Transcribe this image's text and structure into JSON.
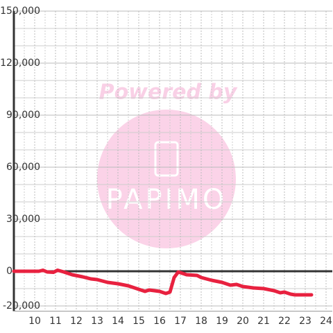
{
  "chart_data": {
    "type": "line",
    "x": [
      9,
      10.2,
      10.4,
      10.6,
      10.9,
      11.1,
      11.4,
      11.8,
      12.3,
      12.7,
      13,
      13.5,
      14,
      14.5,
      15,
      15.3,
      15.5,
      16,
      16.3,
      16.5,
      16.7,
      16.9,
      17,
      17.3,
      17.8,
      18,
      18.5,
      19,
      19.4,
      19.7,
      20,
      20.5,
      21,
      21.5,
      21.8,
      22,
      22.3,
      22.5,
      23.3
    ],
    "series": [
      {
        "color": "#e8213f",
        "values": [
          0,
          0,
          600,
          -400,
          -600,
          600,
          -400,
          -2000,
          -3200,
          -4400,
          -4800,
          -6400,
          -7200,
          -8400,
          -10400,
          -11600,
          -10800,
          -11600,
          -12800,
          -12000,
          -3600,
          -400,
          -800,
          -2000,
          -2400,
          -3600,
          -5200,
          -6400,
          -8000,
          -7600,
          -8800,
          -9600,
          -10000,
          -11200,
          -12400,
          -12000,
          -13200,
          -13600,
          -13600
        ]
      }
    ],
    "xlim": [
      9,
      24.3
    ],
    "ylim": [
      -23000,
      150000
    ],
    "xticks": [
      10,
      11,
      12,
      13,
      14,
      15,
      16,
      17,
      18,
      19,
      20,
      21,
      22,
      23,
      24
    ],
    "xminor": [
      9.5,
      10.5,
      11.5,
      12.5,
      13.5,
      14.5,
      15.5,
      16.5,
      17.5,
      18.5,
      19.5,
      20.5,
      21.5,
      22.5,
      23.5
    ],
    "yticks": [
      {
        "value": -20000,
        "label": "-20,000"
      },
      0,
      {
        "value": 30000,
        "label": "30,000"
      },
      {
        "value": 60000,
        "label": "60,000"
      },
      {
        "value": 90000,
        "label": "90,000"
      },
      {
        "value": 120000,
        "label": "120,000"
      },
      {
        "value": 150000,
        "label": "150,000"
      }
    ],
    "yminor": [
      -10000,
      10000,
      20000,
      40000,
      50000,
      70000,
      80000,
      100000,
      110000,
      130000,
      140000
    ],
    "grid": true,
    "watermark": [
      "Powered by",
      "PAPIMO"
    ]
  }
}
